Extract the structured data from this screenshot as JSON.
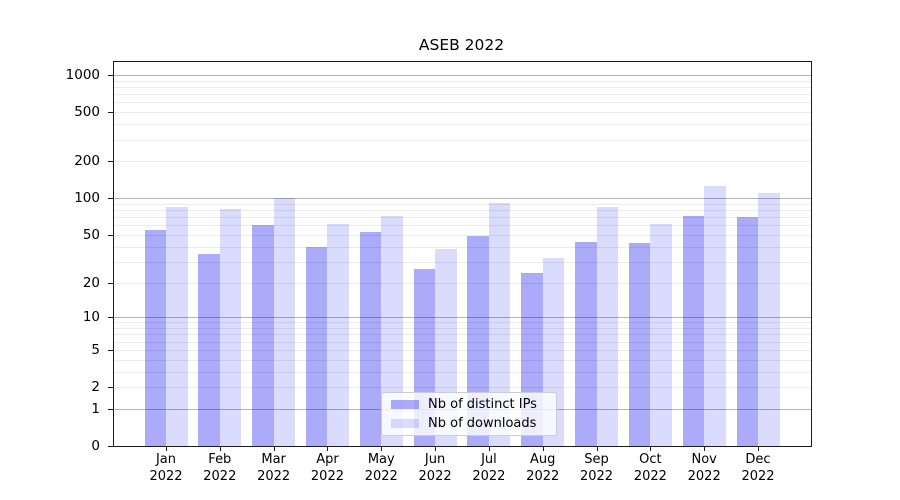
{
  "chart_data": {
    "type": "bar",
    "title": "ASEB 2022",
    "categories": [
      "Jan",
      "Feb",
      "Mar",
      "Apr",
      "May",
      "Jun",
      "Jul",
      "Aug",
      "Sep",
      "Oct",
      "Nov",
      "Dec"
    ],
    "year_label": "2022",
    "series": [
      {
        "name": "Nb of distinct IPs",
        "color": "rgba(0,0,240,0.33)",
        "values": [
          55,
          35,
          60,
          40,
          53,
          26,
          49,
          24,
          44,
          43,
          72,
          70
        ]
      },
      {
        "name": "Nb of downloads",
        "color": "rgba(0,0,240,0.14)",
        "values": [
          85,
          81,
          101,
          61,
          72,
          38,
          91,
          32,
          85,
          62,
          125,
          110
        ]
      }
    ],
    "y_scale": "log10(1+x)",
    "ylim": [
      0,
      1274
    ],
    "y_ticks": [
      1000,
      500,
      200,
      100,
      50,
      20,
      10,
      5,
      2,
      1,
      0
    ],
    "y_major_gridlines": [
      1,
      10,
      100,
      1000
    ],
    "y_minor_gridlines": [
      2,
      3,
      4,
      5,
      6,
      7,
      8,
      9,
      20,
      30,
      40,
      50,
      60,
      70,
      80,
      90,
      200,
      300,
      400,
      500,
      600,
      700,
      800,
      900
    ],
    "grid": {
      "major_color": "#b4b4b4",
      "minor_color": "#ebebeb"
    },
    "axis_color": "#1a1a1a",
    "legend_position": "bottom-center"
  }
}
